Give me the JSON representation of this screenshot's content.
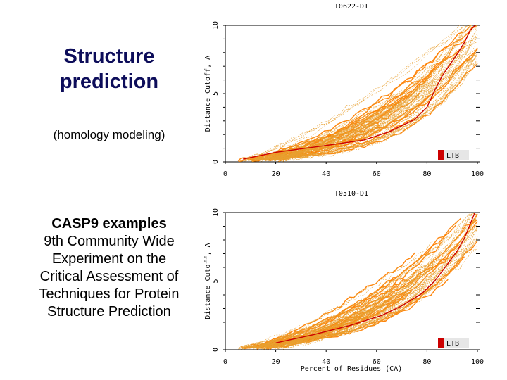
{
  "slide": {
    "title_lines": [
      "Structure",
      "prediction"
    ],
    "subtitle": "(homology modeling)",
    "casp_heading": "CASP9 examples",
    "casp_lines": [
      "9th Community Wide",
      "Experiment on the",
      "Critical Assessment of",
      "Techniques for Protein",
      "Structure Prediction"
    ]
  },
  "colors": {
    "models": "#e8a030",
    "dense": "#ff7f00",
    "highlight": "#cc0000",
    "title": "#0d0d5a"
  },
  "chart_data": [
    {
      "type": "line",
      "title": "T0622-D1",
      "xlabel": "",
      "ylabel": "Distance Cutoff, A",
      "xlim": [
        0,
        100
      ],
      "ylim": [
        0,
        10
      ],
      "x_ticks": [
        "0",
        "20",
        "40",
        "60",
        "80",
        "100"
      ],
      "y_ticks": [
        "0",
        "5",
        "10"
      ],
      "legend": "LTB",
      "legend_position": "bottom-right",
      "highlight_series": {
        "name": "LTB",
        "x": [
          7,
          20,
          40,
          55,
          65,
          75,
          80,
          83,
          86,
          89,
          92,
          95,
          97,
          99
        ],
        "y": [
          0.2,
          0.7,
          1.2,
          1.6,
          2.2,
          3.1,
          4.0,
          5.2,
          6.3,
          7.1,
          7.9,
          8.8,
          9.6,
          10
        ]
      }
    },
    {
      "type": "line",
      "title": "T0510-D1",
      "xlabel": "Percent of Residues (CA)",
      "ylabel": "Distance Cutoff, A",
      "xlim": [
        0,
        100
      ],
      "ylim": [
        0,
        10
      ],
      "x_ticks": [
        "0",
        "20",
        "40",
        "60",
        "80",
        "100"
      ],
      "y_ticks": [
        "0",
        "5",
        "10"
      ],
      "legend": "LTB",
      "legend_position": "bottom-right",
      "highlight_series": {
        "name": "LTB",
        "x": [
          20,
          35,
          50,
          62,
          70,
          78,
          83,
          88,
          92,
          95,
          97,
          99
        ],
        "y": [
          0.5,
          1.1,
          1.8,
          2.5,
          3.2,
          4.1,
          5.0,
          6.2,
          7.2,
          8.2,
          9.1,
          10
        ]
      }
    }
  ]
}
